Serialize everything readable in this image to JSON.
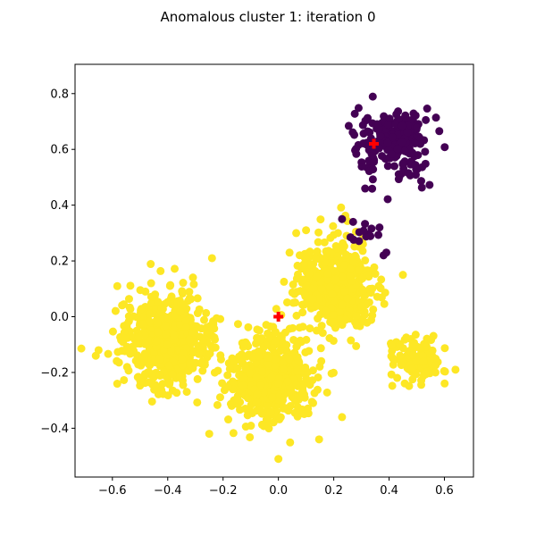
{
  "chart_data": {
    "type": "scatter",
    "title": "Anomalous cluster 1: iteration 0",
    "xlabel": "",
    "ylabel": "",
    "xlim": [
      -0.735,
      0.705
    ],
    "ylim": [
      -0.575,
      0.905
    ],
    "x_ticks": [
      -0.6,
      -0.4,
      -0.2,
      0.0,
      0.2,
      0.4,
      0.6
    ],
    "x_tick_labels": [
      "−0.6",
      "−0.4",
      "−0.2",
      "0.0",
      "0.2",
      "0.4",
      "0.6"
    ],
    "y_ticks": [
      -0.4,
      -0.2,
      0.0,
      0.2,
      0.4,
      0.6,
      0.8
    ],
    "y_tick_labels": [
      "−0.4",
      "−0.2",
      "0.0",
      "0.2",
      "0.4",
      "0.6",
      "0.8"
    ],
    "grid": false,
    "legend": false,
    "colors": {
      "anomalous": "#440154",
      "normal": "#fde725",
      "centroid": "#ff0000"
    },
    "clusters": [
      {
        "group": "anomalous",
        "center": [
          0.42,
          0.62
        ],
        "spread": 0.065,
        "count": 230
      },
      {
        "group": "anomalous",
        "center": [
          0.3,
          0.3
        ],
        "spread": 0.035,
        "count": 12
      },
      {
        "group": "normal",
        "center": [
          -0.4,
          -0.09
        ],
        "spread": 0.085,
        "count": 520
      },
      {
        "group": "normal",
        "center": [
          -0.03,
          -0.22
        ],
        "spread": 0.075,
        "count": 520
      },
      {
        "group": "normal",
        "center": [
          0.2,
          0.11
        ],
        "spread": 0.075,
        "count": 460
      },
      {
        "group": "normal",
        "center": [
          0.5,
          -0.15
        ],
        "spread": 0.045,
        "count": 120
      }
    ],
    "outliers": [
      {
        "group": "anomalous",
        "x": 0.23,
        "y": 0.35
      },
      {
        "group": "anomalous",
        "x": 0.27,
        "y": 0.34
      },
      {
        "group": "anomalous",
        "x": 0.38,
        "y": 0.22
      },
      {
        "group": "anomalous",
        "x": 0.39,
        "y": 0.23
      },
      {
        "group": "normal",
        "x": -0.65,
        "y": -0.12
      },
      {
        "group": "normal",
        "x": -0.66,
        "y": -0.14
      },
      {
        "group": "normal",
        "x": -0.46,
        "y": 0.12
      },
      {
        "group": "normal",
        "x": -0.25,
        "y": -0.42
      },
      {
        "group": "normal",
        "x": 0.0,
        "y": -0.51
      },
      {
        "group": "normal",
        "x": 0.23,
        "y": -0.36
      },
      {
        "group": "normal",
        "x": 0.64,
        "y": -0.19
      },
      {
        "group": "normal",
        "x": 0.45,
        "y": 0.15
      },
      {
        "group": "normal",
        "x": -0.24,
        "y": 0.21
      },
      {
        "group": "normal",
        "x": 0.1,
        "y": 0.31
      }
    ],
    "centroids": [
      {
        "x": 0.345,
        "y": 0.62
      },
      {
        "x": 0.0,
        "y": 0.0
      }
    ]
  }
}
